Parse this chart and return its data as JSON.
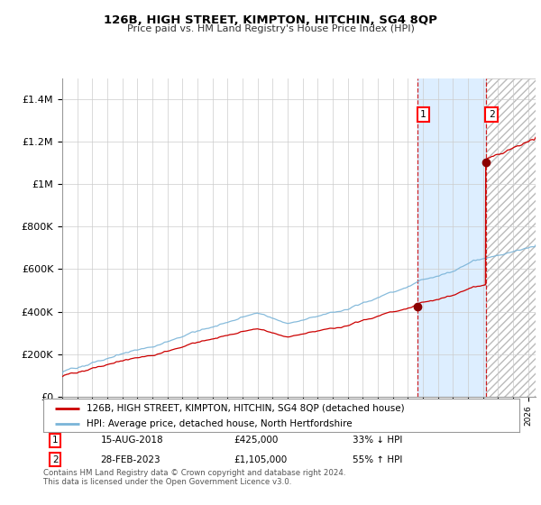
{
  "title": "126B, HIGH STREET, KIMPTON, HITCHIN, SG4 8QP",
  "subtitle": "Price paid vs. HM Land Registry's House Price Index (HPI)",
  "ylim": [
    0,
    1500000
  ],
  "xlim_start": 1995.0,
  "xlim_end": 2026.5,
  "yticks": [
    0,
    200000,
    400000,
    600000,
    800000,
    1000000,
    1200000,
    1400000
  ],
  "ytick_labels": [
    "£0",
    "£200K",
    "£400K",
    "£600K",
    "£800K",
    "£1M",
    "£1.2M",
    "£1.4M"
  ],
  "hpi_color": "#7ab4d8",
  "price_color": "#cc0000",
  "marker_color": "#8b0000",
  "sale1_x": 2018.62,
  "sale1_y": 425000,
  "sale1_label": "1",
  "sale1_date": "15-AUG-2018",
  "sale1_price": "£425,000",
  "sale1_hpi": "33% ↓ HPI",
  "sale2_x": 2023.17,
  "sale2_y": 1105000,
  "sale2_label": "2",
  "sale2_date": "28-FEB-2023",
  "sale2_price": "£1,105,000",
  "sale2_hpi": "55% ↑ HPI",
  "legend1": "126B, HIGH STREET, KIMPTON, HITCHIN, SG4 8QP (detached house)",
  "legend2": "HPI: Average price, detached house, North Hertfordshire",
  "footnote": "Contains HM Land Registry data © Crown copyright and database right 2024.\nThis data is licensed under the Open Government Licence v3.0.",
  "background_color": "#ffffff",
  "shaded_region_color": "#ddeeff",
  "hatch_color": "#d8d8d8",
  "grid_color": "#cccccc"
}
